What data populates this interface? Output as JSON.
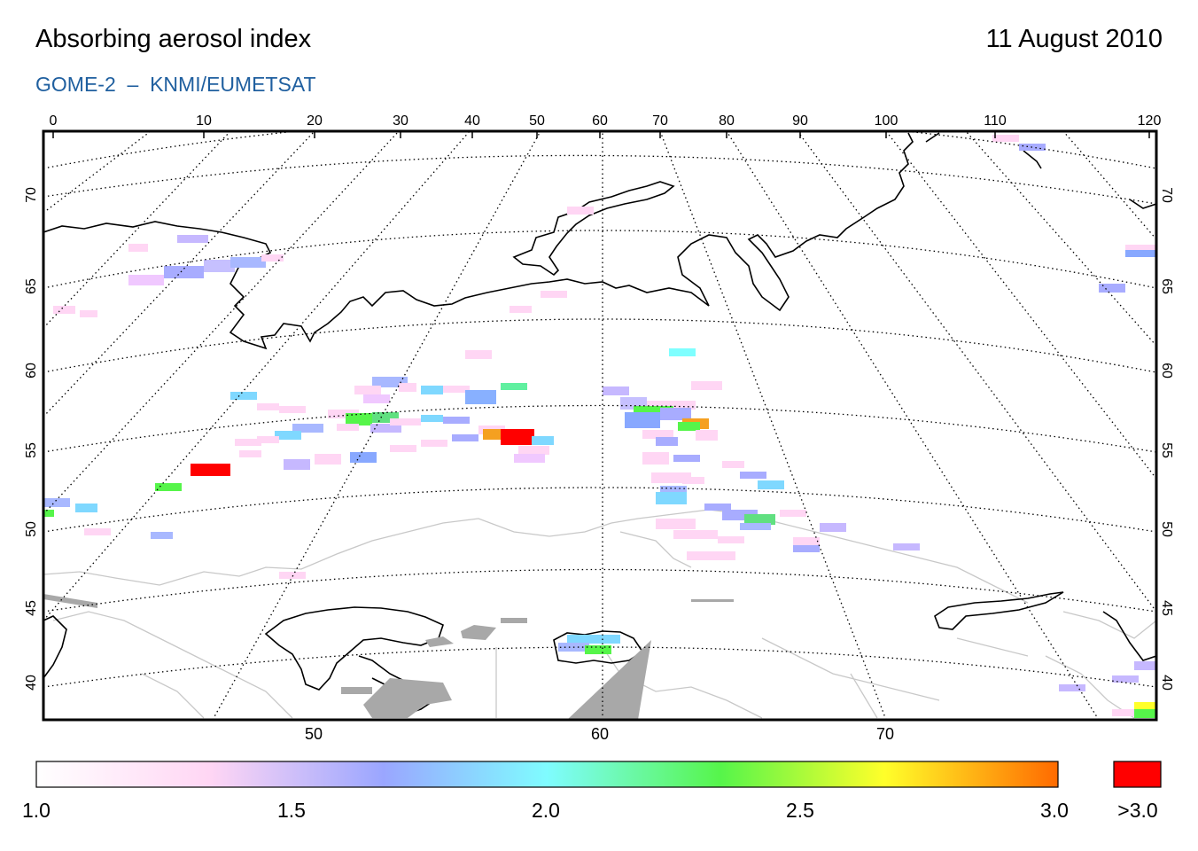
{
  "header": {
    "title": "Absorbing aerosol index",
    "date": "11 August 2010",
    "subtitle": "GOME-2  –  KNMI/EUMETSAT"
  },
  "axes": {
    "top_ticks": [
      "0",
      "10",
      "20",
      "30",
      "40",
      "50",
      "60",
      "70",
      "80",
      "90",
      "100",
      "110",
      "120"
    ],
    "bottom_ticks": [
      "50",
      "60",
      "70"
    ],
    "left_ticks": [
      "70",
      "65",
      "60",
      "55",
      "50",
      "45",
      "40"
    ],
    "right_ticks": [
      "70",
      "65",
      "60",
      "55",
      "50",
      "45",
      "40"
    ]
  },
  "colorbar": {
    "labels": [
      "1.0",
      "1.5",
      "2.0",
      "2.5",
      "3.0"
    ],
    "over_label": ">3.0",
    "over_color": "#ff0000",
    "stops": [
      "#ffffff",
      "#ffd6f4",
      "#9aa6ff",
      "#7ffcff",
      "#56f54a",
      "#ffff2a",
      "#ff6a00"
    ]
  },
  "colors": {
    "coastline": "#000000",
    "border": "#c8c8c8",
    "nodata": "#a8a8a8"
  }
}
